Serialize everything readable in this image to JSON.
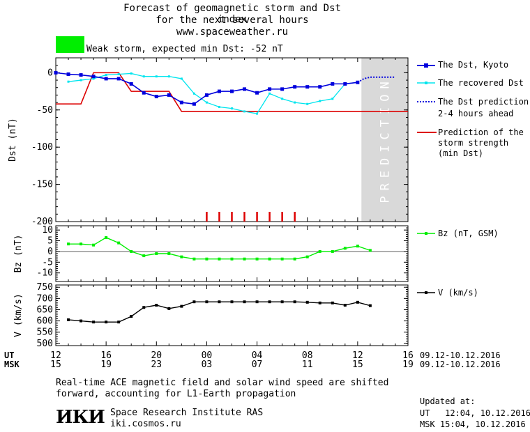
{
  "header": {
    "title_line1": "Forecast of geomagnetic storm and Dst index",
    "title_line2": "for the next several hours",
    "site": "www.spaceweather.ru",
    "status_color": "#00ee00",
    "status_text": "Weak storm, expected min Dst: -52 nT"
  },
  "legend": {
    "dst_kyoto": "The Dst, Kyoto",
    "dst_recovered": "The recovered Dst",
    "dst_prediction_1": "The Dst prediction",
    "dst_prediction_2": "2-4 hours ahead",
    "storm_strength_1": "Prediction of the",
    "storm_strength_2": "storm strength",
    "storm_strength_3": "(min Dst)",
    "bz": "Bz (nT, GSM)",
    "v": "V (km/s)"
  },
  "prediction_band_label": "PREDICTION",
  "time_axis": {
    "ut_label": "UT",
    "msk_label": "MSK",
    "ut_ticks": [
      "12",
      "16",
      "20",
      "00",
      "04",
      "08",
      "12",
      "16"
    ],
    "msk_ticks": [
      "15",
      "19",
      "23",
      "03",
      "07",
      "11",
      "15",
      "19"
    ],
    "ut_range": "09.12-10.12.2016",
    "msk_range": "09.12-10.12.2016"
  },
  "footer": {
    "note_line1": "Real-time ACE magnetic field and solar wind speed are shifted",
    "note_line2": "forward, accounting for L1-Earth propagation",
    "logo": "ИКИ",
    "org": "Space Research Institute RAS",
    "url": "iki.cosmos.ru",
    "updated_label": "Updated at:",
    "updated_ut": "UT   12:04, 10.12.2016",
    "updated_msk": "MSK 15:04, 10.12.2016"
  },
  "colors": {
    "dst_kyoto": "#0000dd",
    "dst_recovered": "#00e5ee",
    "dst_prediction": "#0000dd",
    "storm_strength": "#dd0000",
    "bz": "#00ee00",
    "v": "#000000",
    "prediction_band": "#d9d9d9",
    "storm_ticks": "#dd0000"
  },
  "chart_data": [
    {
      "type": "line",
      "panel": "Dst",
      "ylabel": "Dst (nT)",
      "ylim": [
        -200,
        20
      ],
      "yticks": [
        0,
        -50,
        -100,
        -150,
        -200
      ],
      "xlim_hours": [
        0,
        28
      ],
      "x_unit": "hours since 12 UT 09.12.2016",
      "prediction_start": 24.3,
      "series": [
        {
          "name": "The Dst, Kyoto",
          "x": [
            0,
            1,
            2,
            3,
            4,
            5,
            6,
            7,
            8,
            9,
            10,
            11,
            12,
            13,
            14,
            15,
            16,
            17,
            18,
            19,
            20,
            21,
            22,
            23,
            24
          ],
          "y": [
            0,
            -2,
            -3,
            -5,
            -8,
            -8,
            -15,
            -27,
            -32,
            -30,
            -40,
            -42,
            -30,
            -25,
            -25,
            -22,
            -27,
            -22,
            -22,
            -19,
            -19,
            -19,
            -15,
            -15,
            -13
          ]
        },
        {
          "name": "The recovered Dst",
          "x": [
            1,
            2,
            3,
            4,
            5,
            6,
            7,
            8,
            9,
            10,
            11,
            12,
            13,
            14,
            15,
            16,
            17,
            18,
            19,
            20,
            21,
            22,
            23,
            24
          ],
          "y": [
            -12,
            -10,
            -8,
            -3,
            -2,
            -1,
            -5,
            -5,
            -5,
            -8,
            -28,
            -40,
            -46,
            -48,
            -52,
            -55,
            -28,
            -35,
            -40,
            -42,
            -38,
            -35,
            -15,
            -13
          ]
        },
        {
          "name": "The Dst prediction 2-4 hours ahead",
          "x": [
            24,
            24.5,
            25,
            26,
            27
          ],
          "y": [
            -13,
            -8,
            -6,
            -6,
            -6
          ]
        },
        {
          "name": "Prediction of the storm strength (min Dst)",
          "x": [
            0,
            2,
            3,
            5,
            6,
            7,
            9,
            10,
            11,
            28
          ],
          "y": [
            -42,
            -42,
            0,
            0,
            -25,
            -25,
            -25,
            -52,
            -52,
            -52
          ]
        }
      ],
      "storm_markers_x": [
        12,
        13,
        14,
        15,
        16,
        17,
        18,
        19
      ]
    },
    {
      "type": "line",
      "panel": "Bz",
      "ylabel": "Bz (nT)",
      "ylim": [
        -14,
        12
      ],
      "yticks": [
        10,
        5,
        0,
        -5,
        -10
      ],
      "series": [
        {
          "name": "Bz (nT, GSM)",
          "x": [
            1,
            2,
            3,
            4,
            5,
            6,
            7,
            8,
            9,
            10,
            11,
            12,
            13,
            14,
            15,
            16,
            17,
            18,
            19,
            20,
            21,
            22,
            23,
            24,
            25
          ],
          "y": [
            3.5,
            3.5,
            3,
            6.5,
            4,
            0,
            -2,
            -1,
            -1,
            -2.5,
            -3.5,
            -3.5,
            -3.5,
            -3.5,
            -3.5,
            -3.5,
            -3.5,
            -3.5,
            -3.5,
            -2.5,
            0,
            0,
            1.5,
            2.5,
            0.5
          ]
        }
      ]
    },
    {
      "type": "line",
      "panel": "V",
      "ylabel": "V (km/s)",
      "ylim": [
        490,
        760
      ],
      "yticks": [
        750,
        700,
        650,
        600,
        550,
        500
      ],
      "series": [
        {
          "name": "V (km/s)",
          "x": [
            1,
            2,
            3,
            4,
            5,
            6,
            7,
            8,
            9,
            10,
            11,
            12,
            13,
            14,
            15,
            16,
            17,
            18,
            19,
            20,
            21,
            22,
            23,
            24,
            25
          ],
          "y": [
            605,
            600,
            595,
            595,
            595,
            620,
            660,
            670,
            655,
            665,
            685,
            685,
            685,
            685,
            685,
            685,
            685,
            685,
            685,
            683,
            680,
            680,
            670,
            683,
            668
          ]
        }
      ]
    }
  ]
}
